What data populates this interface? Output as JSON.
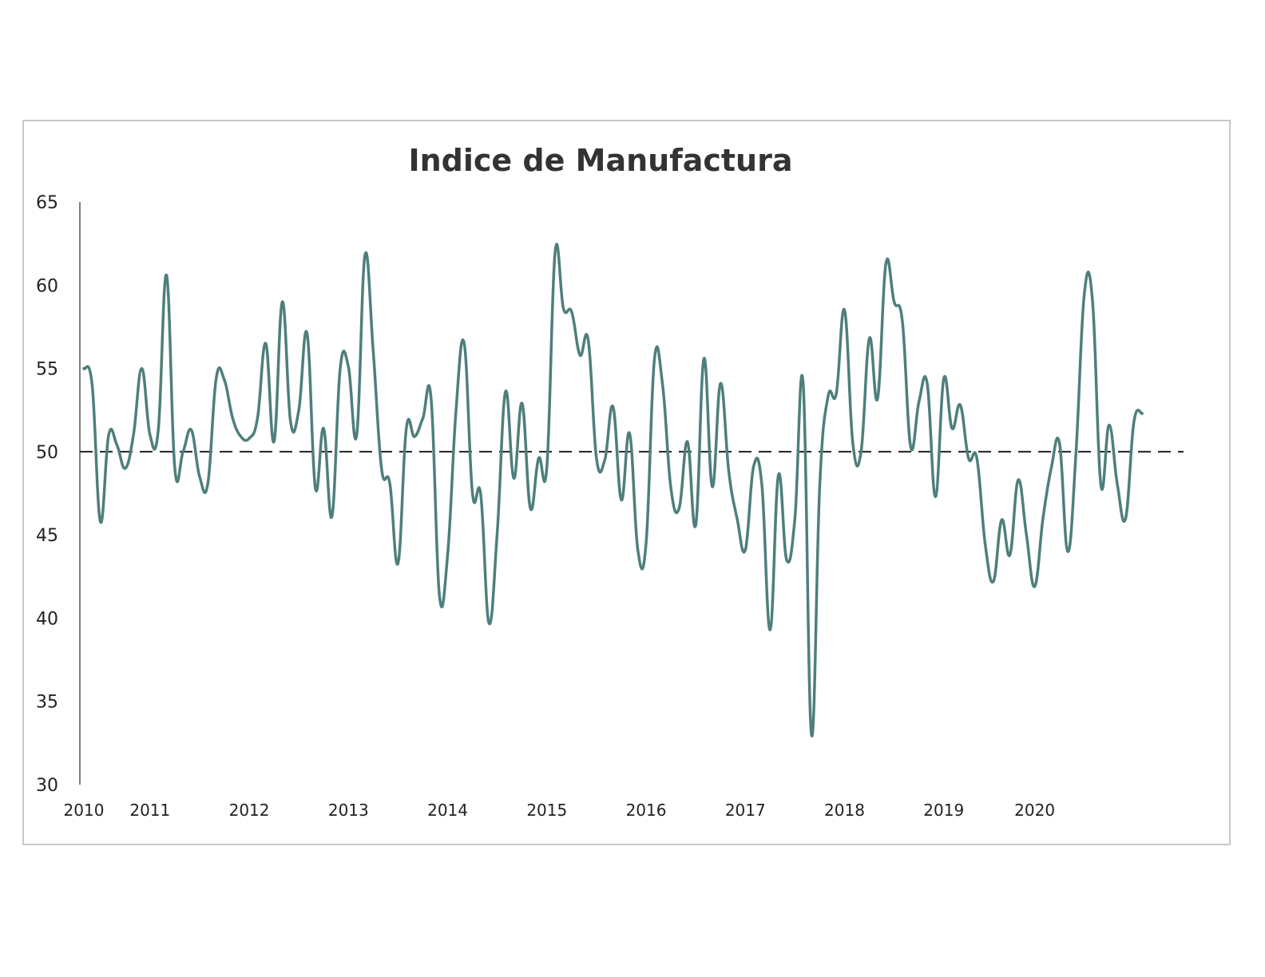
{
  "chart_data": {
    "type": "line",
    "title": "Indice de Manufactura",
    "xlabel": "",
    "ylabel": "",
    "ylim": [
      30,
      65
    ],
    "yticks": [
      30,
      35,
      40,
      45,
      50,
      55,
      60,
      65
    ],
    "xlim": [
      "2010-01",
      "2021-02"
    ],
    "xtick_labels": [
      {
        "label": "2010",
        "date": "2010-01"
      },
      {
        "label": "2011",
        "date": "2010-09"
      },
      {
        "label": "2012",
        "date": "2011-09"
      },
      {
        "label": "2013",
        "date": "2012-09"
      },
      {
        "label": "2014",
        "date": "2013-09"
      },
      {
        "label": "2015",
        "date": "2014-09"
      },
      {
        "label": "2016",
        "date": "2015-09"
      },
      {
        "label": "2017",
        "date": "2016-09"
      },
      {
        "label": "2018",
        "date": "2017-09"
      },
      {
        "label": "2019",
        "date": "2018-09"
      },
      {
        "label": "2020",
        "date": "2019-08"
      }
    ],
    "reference_line": {
      "y": 50,
      "style": "dashed",
      "color": "#222222"
    },
    "grid": false,
    "legend": "none",
    "series": [
      {
        "color": "#4e7f7c",
        "points": [
          [
            "2010-01",
            55.0
          ],
          [
            "2010-02",
            54.0
          ],
          [
            "2010-03",
            45.8
          ],
          [
            "2010-04",
            51.0
          ],
          [
            "2010-05",
            50.4
          ],
          [
            "2010-06",
            49.0
          ],
          [
            "2010-07",
            51.0
          ],
          [
            "2010-08",
            55.0
          ],
          [
            "2010-09",
            51.0
          ],
          [
            "2010-10",
            51.3
          ],
          [
            "2010-11",
            60.6
          ],
          [
            "2010-12",
            49.0
          ],
          [
            "2011-01",
            50.0
          ],
          [
            "2011-02",
            51.3
          ],
          [
            "2011-03",
            48.5
          ],
          [
            "2011-04",
            48.1
          ],
          [
            "2011-05",
            54.4
          ],
          [
            "2011-06",
            54.3
          ],
          [
            "2011-07",
            52.0
          ],
          [
            "2011-08",
            50.9
          ],
          [
            "2011-09",
            50.8
          ],
          [
            "2011-10",
            52.0
          ],
          [
            "2011-11",
            56.5
          ],
          [
            "2011-12",
            50.6
          ],
          [
            "2012-01",
            59.0
          ],
          [
            "2012-02",
            51.8
          ],
          [
            "2012-03",
            52.5
          ],
          [
            "2012-04",
            57.1
          ],
          [
            "2012-05",
            47.8
          ],
          [
            "2012-06",
            51.4
          ],
          [
            "2012-07",
            46.1
          ],
          [
            "2012-08",
            55.0
          ],
          [
            "2012-09",
            55.1
          ],
          [
            "2012-10",
            51.0
          ],
          [
            "2012-11",
            61.8
          ],
          [
            "2012-12",
            56.0
          ],
          [
            "2013-01",
            49.0
          ],
          [
            "2013-02",
            48.1
          ],
          [
            "2013-03",
            43.3
          ],
          [
            "2013-04",
            51.4
          ],
          [
            "2013-05",
            50.9
          ],
          [
            "2013-06",
            52.0
          ],
          [
            "2013-07",
            53.2
          ],
          [
            "2013-08",
            41.4
          ],
          [
            "2013-09",
            43.8
          ],
          [
            "2013-10",
            52.4
          ],
          [
            "2013-11",
            56.5
          ],
          [
            "2013-12",
            47.5
          ],
          [
            "2014-01",
            47.4
          ],
          [
            "2014-02",
            39.7
          ],
          [
            "2014-03",
            45.2
          ],
          [
            "2014-04",
            53.6
          ],
          [
            "2014-05",
            48.4
          ],
          [
            "2014-06",
            52.9
          ],
          [
            "2014-07",
            46.6
          ],
          [
            "2014-08",
            49.6
          ],
          [
            "2014-09",
            49.1
          ],
          [
            "2014-10",
            62.0
          ],
          [
            "2014-11",
            58.6
          ],
          [
            "2014-12",
            58.4
          ],
          [
            "2015-01",
            55.8
          ],
          [
            "2015-02",
            56.7
          ],
          [
            "2015-03",
            49.6
          ],
          [
            "2015-04",
            49.5
          ],
          [
            "2015-05",
            52.7
          ],
          [
            "2015-06",
            47.1
          ],
          [
            "2015-07",
            51.1
          ],
          [
            "2015-08",
            44.1
          ],
          [
            "2015-09",
            44.5
          ],
          [
            "2015-10",
            55.5
          ],
          [
            "2015-11",
            54.0
          ],
          [
            "2015-12",
            47.8
          ],
          [
            "2016-01",
            46.6
          ],
          [
            "2016-02",
            50.6
          ],
          [
            "2016-03",
            45.6
          ],
          [
            "2016-04",
            55.6
          ],
          [
            "2016-05",
            47.9
          ],
          [
            "2016-06",
            54.1
          ],
          [
            "2016-07",
            48.8
          ],
          [
            "2016-08",
            46.0
          ],
          [
            "2016-09",
            44.1
          ],
          [
            "2016-10",
            49.1
          ],
          [
            "2016-11",
            48.0
          ],
          [
            "2016-12",
            39.3
          ],
          [
            "2017-01",
            48.6
          ],
          [
            "2017-02",
            43.5
          ],
          [
            "2017-03",
            46.0
          ],
          [
            "2017-04",
            54.1
          ],
          [
            "2017-05",
            33.0
          ],
          [
            "2017-06",
            48.0
          ],
          [
            "2017-07",
            53.3
          ],
          [
            "2017-08",
            53.5
          ],
          [
            "2017-09",
            58.5
          ],
          [
            "2017-10",
            50.5
          ],
          [
            "2017-11",
            50.0
          ],
          [
            "2017-12",
            56.8
          ],
          [
            "2018-01",
            53.2
          ],
          [
            "2018-02",
            61.3
          ],
          [
            "2018-03",
            59.0
          ],
          [
            "2018-04",
            57.8
          ],
          [
            "2018-05",
            50.3
          ],
          [
            "2018-06",
            53.0
          ],
          [
            "2018-07",
            54.1
          ],
          [
            "2018-08",
            47.3
          ],
          [
            "2018-09",
            54.4
          ],
          [
            "2018-10",
            51.4
          ],
          [
            "2018-11",
            52.8
          ],
          [
            "2018-12",
            49.6
          ],
          [
            "2019-01",
            49.6
          ],
          [
            "2019-02",
            44.5
          ],
          [
            "2019-03",
            42.2
          ],
          [
            "2019-04",
            45.9
          ],
          [
            "2019-05",
            43.8
          ],
          [
            "2019-06",
            48.3
          ],
          [
            "2019-07",
            45.0
          ],
          [
            "2019-08",
            41.9
          ],
          [
            "2019-09",
            46.0
          ],
          [
            "2019-10",
            49.0
          ],
          [
            "2019-11",
            50.5
          ],
          [
            "2019-12",
            44.0
          ],
          [
            "2020-01",
            50.0
          ],
          [
            "2020-02",
            59.5
          ],
          [
            "2020-03",
            59.0
          ],
          [
            "2020-04",
            48.0
          ],
          [
            "2020-05",
            51.6
          ],
          [
            "2020-06",
            48.0
          ],
          [
            "2020-07",
            46.0
          ],
          [
            "2020-08",
            51.8
          ],
          [
            "2020-09",
            52.3
          ]
        ]
      }
    ]
  }
}
